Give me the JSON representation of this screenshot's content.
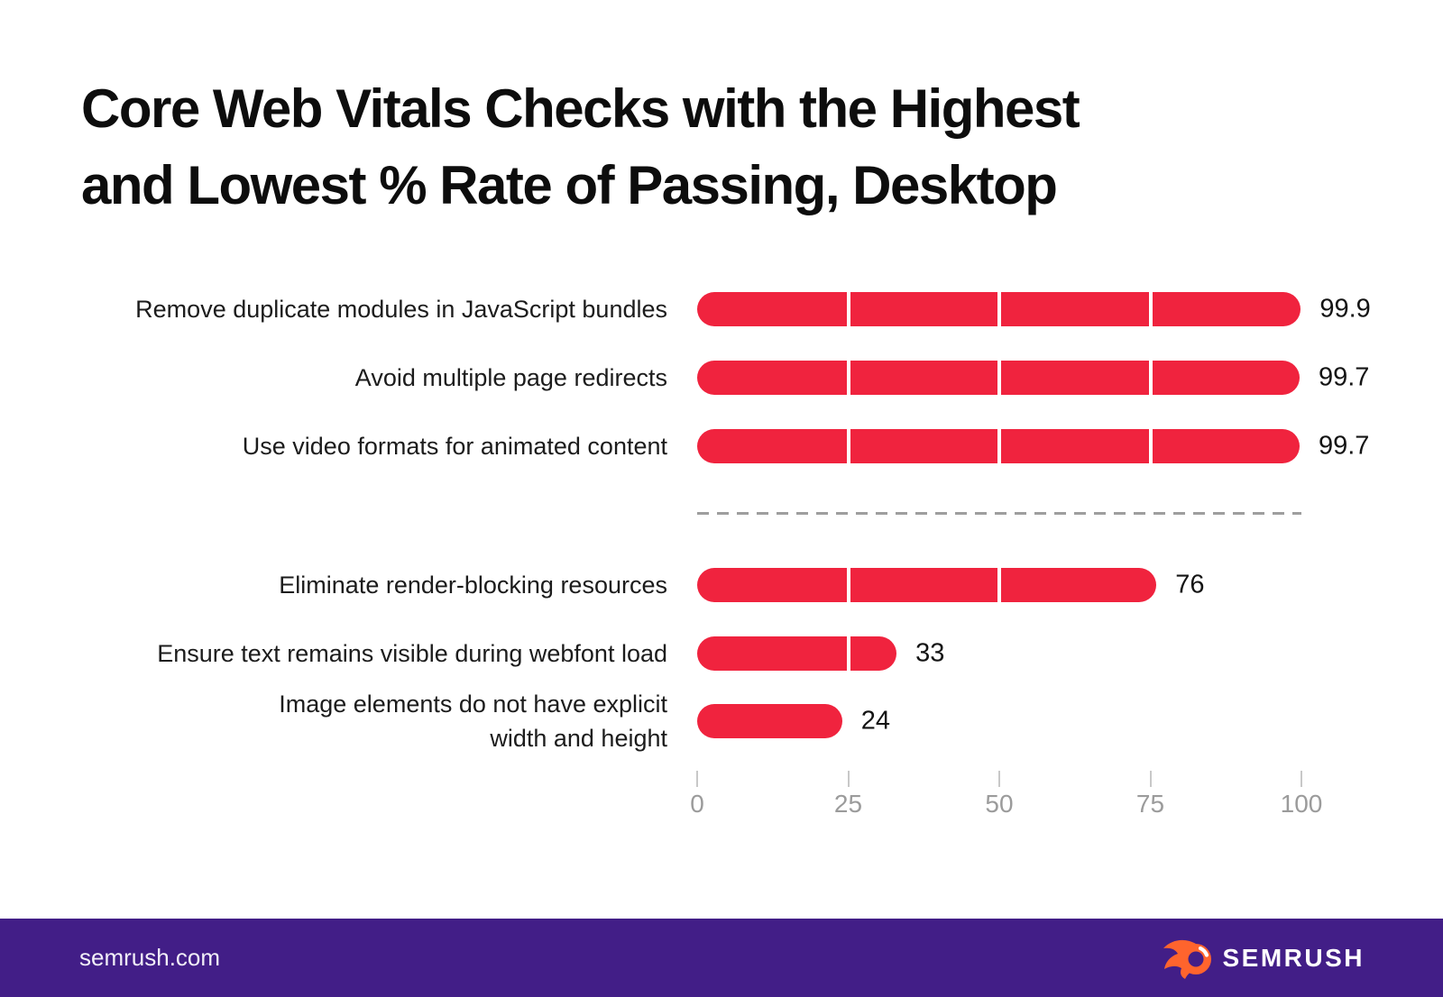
{
  "header": {
    "title_lines": [
      "Core Web Vitals Checks with the Highest",
      "and Lowest % Rate of Passing, Desktop"
    ]
  },
  "chart_data": {
    "type": "bar",
    "orientation": "horizontal",
    "title": "Core Web Vitals Checks with the Highest and Lowest % Rate of Passing, Desktop",
    "xlabel": "",
    "ylabel": "",
    "xlim": [
      0,
      100
    ],
    "x_ticks": [
      0,
      25,
      50,
      75,
      100
    ],
    "grid": "off",
    "legend": "none",
    "bar_color": "#F0233E",
    "divider_positions": [
      25,
      50,
      75
    ],
    "groups": [
      {
        "name": "highest-passing",
        "rows": [
          {
            "label": "Remove duplicate modules in JavaScript bundles",
            "value": 99.9,
            "display": "99.9"
          },
          {
            "label": "Avoid multiple page redirects",
            "value": 99.7,
            "display": "99.7"
          },
          {
            "label": "Use video formats for animated content",
            "value": 99.7,
            "display": "99.7"
          }
        ]
      },
      {
        "name": "lowest-passing",
        "rows": [
          {
            "label": "Eliminate render-blocking resources",
            "value": 76,
            "display": "76"
          },
          {
            "label": "Ensure text remains visible during webfont load",
            "value": 33,
            "display": "33"
          },
          {
            "label": "Image elements do not have explicit width and height",
            "label_lines": [
              "Image elements do not have explicit",
              "width and height"
            ],
            "value": 24,
            "display": "24"
          }
        ]
      }
    ]
  },
  "footer": {
    "site": "semrush.com",
    "brand": "SEMRUSH",
    "colors": {
      "background": "#421E87",
      "flame": "#FF642D",
      "text": "#FFFFFF"
    }
  }
}
